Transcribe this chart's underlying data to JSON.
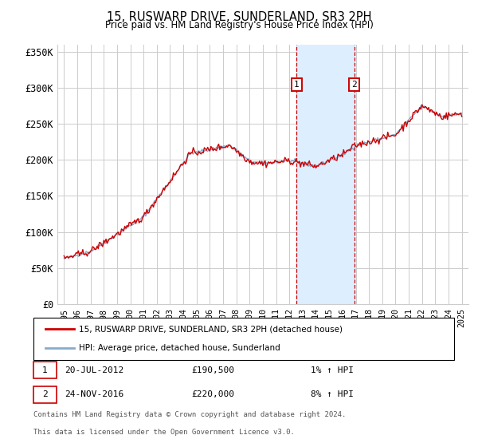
{
  "title": "15, RUSWARP DRIVE, SUNDERLAND, SR3 2PH",
  "subtitle": "Price paid vs. HM Land Registry's House Price Index (HPI)",
  "legend_line1": "15, RUSWARP DRIVE, SUNDERLAND, SR3 2PH (detached house)",
  "legend_line2": "HPI: Average price, detached house, Sunderland",
  "marker1_date": "20-JUL-2012",
  "marker1_price": 190500,
  "marker1_year": 2012.55,
  "marker2_date": "24-NOV-2016",
  "marker2_price": 220000,
  "marker2_year": 2016.9,
  "annotation1": "1% ↑ HPI",
  "annotation2": "8% ↑ HPI",
  "footer1": "Contains HM Land Registry data © Crown copyright and database right 2024.",
  "footer2": "This data is licensed under the Open Government Licence v3.0.",
  "ylim": [
    0,
    360000
  ],
  "xlim_start": 1994.5,
  "xlim_end": 2025.5,
  "red_color": "#cc0000",
  "blue_color": "#88aacc",
  "shade_color": "#ddeeff",
  "grid_color": "#cccccc",
  "vline_color": "#cc0000",
  "marker_box_color": "#cc0000"
}
